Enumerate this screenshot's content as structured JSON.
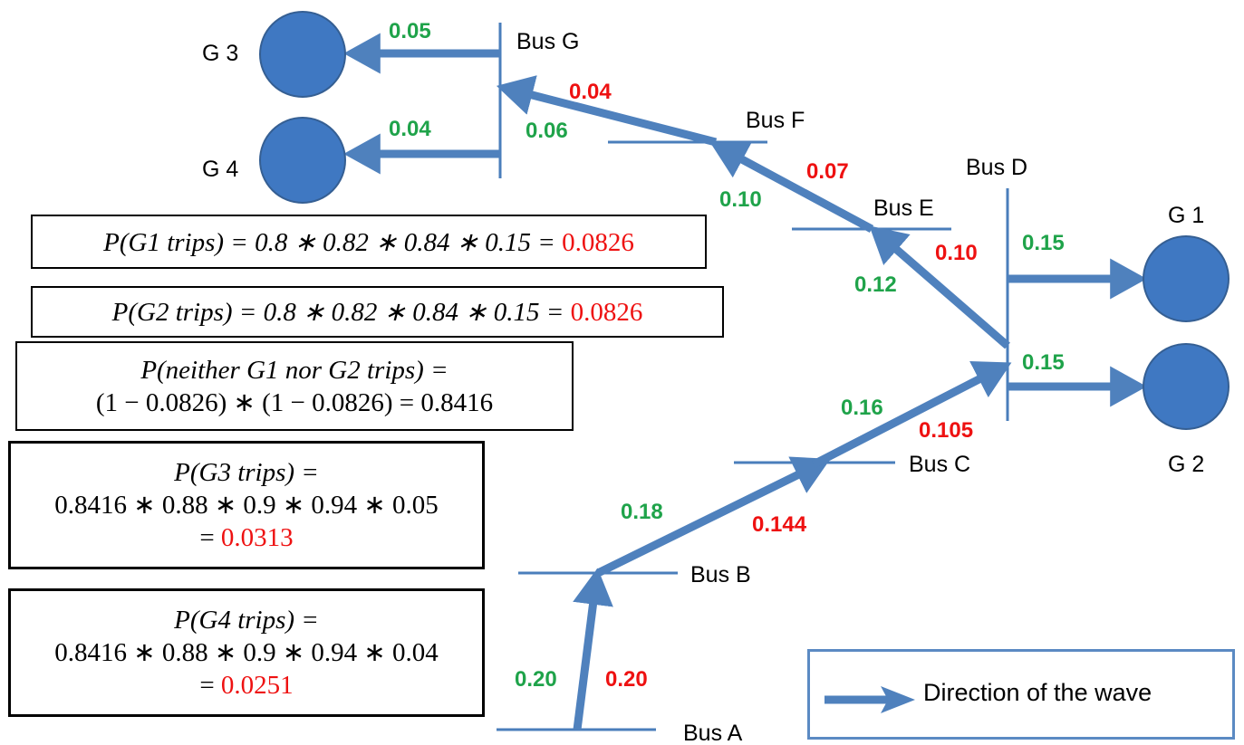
{
  "buses": {
    "a": "Bus A",
    "b": "Bus B",
    "c": "Bus C",
    "d": "Bus D",
    "e": "Bus E",
    "f": "Bus F",
    "g": "Bus G"
  },
  "generators": {
    "g1": "G 1",
    "g2": "G 2",
    "g3": "G 3",
    "g4": "G 4"
  },
  "edge_values": {
    "ab_green": "0.20",
    "ab_red": "0.20",
    "bc_green": "0.18",
    "bc_red": "0.144",
    "cd_green": "0.16",
    "cd_red": "0.105",
    "de_green": "0.12",
    "de_red": "0.10",
    "ef_green": "0.10",
    "ef_red": "0.07",
    "fg_green": "0.06",
    "fg_red": "0.04",
    "g3_green": "0.05",
    "g4_green": "0.04",
    "g1_green": "0.15",
    "g2_green": "0.15"
  },
  "formulas": {
    "g1": {
      "expr": "P(G1 trips) = 0.8 ∗ 0.82 ∗ 0.84 ∗ 0.15 = ",
      "value": "0.0826"
    },
    "g2": {
      "expr": "P(G2 trips) = 0.8 ∗ 0.82 ∗ 0.84 ∗ 0.15 = ",
      "value": "0.0826"
    },
    "neither": {
      "line1": "P(neither G1 nor G2 trips) =",
      "line2": "(1 − 0.0826) ∗ (1 − 0.0826) = 0.8416"
    },
    "g3": {
      "line1": "P(G3 trips) =",
      "line2": "0.8416 ∗ 0.88 ∗ 0.9 ∗ 0.94 ∗ 0.05",
      "line3_prefix": "= ",
      "value": "0.0313"
    },
    "g4": {
      "line1": "P(G4 trips) =",
      "line2": "0.8416 ∗ 0.88 ∗ 0.9 ∗ 0.94 ∗ 0.04",
      "line3_prefix": "= ",
      "value": "0.0251"
    }
  },
  "legend": {
    "label": "Direction of the wave"
  },
  "colors": {
    "wave": "#4f81bd",
    "generator": "#3f78c2",
    "green_value": "#1fa34a",
    "red_value": "#ee1111"
  }
}
